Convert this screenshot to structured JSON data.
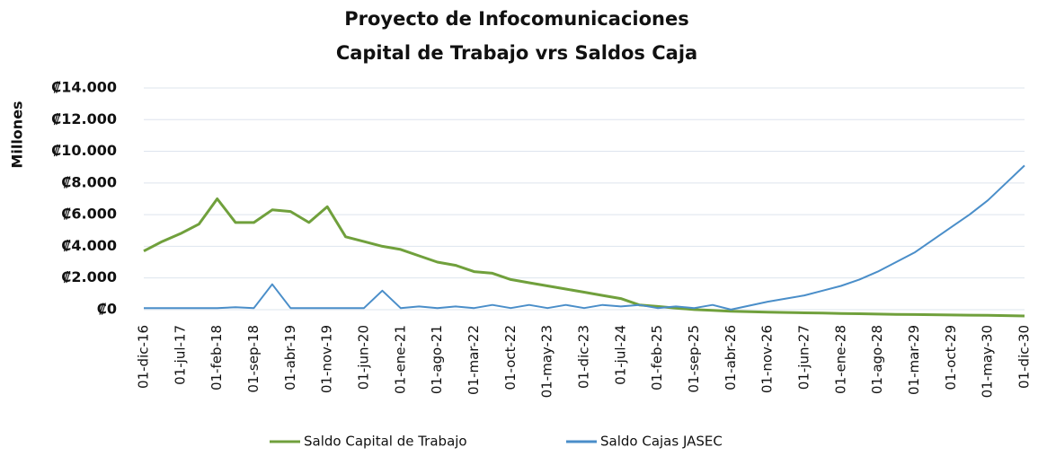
{
  "chart_data": {
    "type": "line",
    "title": "Proyecto de Infocomunicaciones",
    "subtitle": "Capital de Trabajo vrs Saldos Caja",
    "y_label": "Millones",
    "categories": [
      "01-dic-16",
      null,
      "01-jul-17",
      null,
      "01-feb-18",
      null,
      "01-sep-18",
      null,
      "01-abr-19",
      null,
      "01-nov-19",
      null,
      "01-jun-20",
      null,
      "01-ene-21",
      null,
      "01-ago-21",
      null,
      "01-mar-22",
      null,
      "01-oct-22",
      null,
      "01-may-23",
      null,
      "01-dic-23",
      null,
      "01-jul-24",
      null,
      "01-feb-25",
      null,
      "01-sep-25",
      null,
      "01-abr-26",
      null,
      "01-nov-26",
      null,
      "01-jun-27",
      null,
      "01-ene-28",
      null,
      "01-ago-28",
      null,
      "01-mar-29",
      null,
      "01-oct-29",
      null,
      "01-may-30",
      null,
      "01-dic-30"
    ],
    "series": [
      {
        "name": "Saldo Capital de Trabajo",
        "color": "#70a03c",
        "values": [
          3700,
          4300,
          4800,
          5400,
          7000,
          5500,
          5500,
          6300,
          6200,
          5500,
          6500,
          4600,
          4300,
          4000,
          3800,
          3400,
          3000,
          2800,
          2400,
          2300,
          1900,
          1700,
          1500,
          1300,
          1100,
          900,
          700,
          300,
          200,
          100,
          0,
          -50,
          -100,
          -130,
          -160,
          -180,
          -200,
          -220,
          -240,
          -260,
          -280,
          -300,
          -310,
          -320,
          -340,
          -350,
          -360,
          -380,
          -400
        ]
      },
      {
        "name": "Saldo Cajas JASEC",
        "color": "#4a8ec9",
        "values": [
          100,
          100,
          100,
          100,
          100,
          150,
          100,
          1600,
          100,
          100,
          100,
          100,
          100,
          1200,
          100,
          200,
          100,
          200,
          100,
          300,
          100,
          300,
          100,
          300,
          100,
          300,
          200,
          300,
          100,
          200,
          100,
          300,
          0,
          250,
          500,
          700,
          900,
          1200,
          1500,
          1900,
          2400,
          3000,
          3600,
          4400,
          5200,
          6000,
          6900,
          8000,
          9100
        ]
      }
    ],
    "ylim": [
      -400,
      14000
    ],
    "yticks": [
      {
        "value": 0,
        "label": "₡0"
      },
      {
        "value": 2000,
        "label": "₡2.000"
      },
      {
        "value": 4000,
        "label": "₡4.000"
      },
      {
        "value": 6000,
        "label": "₡6.000"
      },
      {
        "value": 8000,
        "label": "₡8.000"
      },
      {
        "value": 10000,
        "label": "₡10.000"
      },
      {
        "value": 12000,
        "label": "₡12.000"
      },
      {
        "value": 14000,
        "label": "₡14.000"
      }
    ],
    "grid": true,
    "legend": "bottom"
  }
}
